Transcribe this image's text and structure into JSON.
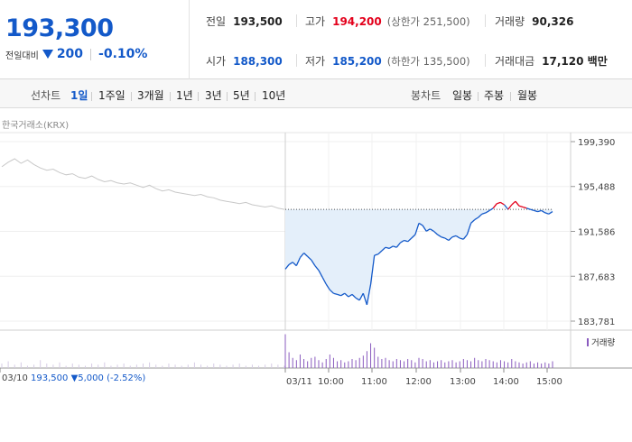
{
  "quote": {
    "price": "193,300",
    "change_label": "전일대비",
    "change": "200",
    "change_rate": "-0.10%"
  },
  "stats": {
    "prev_close_label": "전일",
    "prev_close": "193,500",
    "high_label": "고가",
    "high": "194,200",
    "upper_limit": "(상한가 251,500)",
    "volume_label": "거래량",
    "volume": "90,326",
    "open_label": "시가",
    "open": "188,300",
    "low_label": "저가",
    "low": "185,200",
    "lower_limit": "(하한가 135,500)",
    "amount_label": "거래대금",
    "amount": "17,120 백만"
  },
  "period_bar": {
    "line_label": "선차트",
    "line_items": [
      "1일",
      "1주일",
      "3개월",
      "1년",
      "3년",
      "5년",
      "10년"
    ],
    "active": "1일",
    "candle_label": "봉차트",
    "candle_items": [
      "일봉",
      "주봉",
      "월봉"
    ]
  },
  "source": "한국거래소(KRX)",
  "tooltip": {
    "date": "03/10",
    "price": "193,500",
    "change": "▼5,000",
    "rate": "(-2.52%)"
  },
  "volume_legend": "거래량",
  "colors": {
    "up": "#e3001b",
    "down": "#1359c9",
    "prev_day_line": "#c8c8c8",
    "fill": "#e4effa",
    "volume": "#8a5bbf"
  },
  "chart_data": {
    "type": "line",
    "y_ticks": [
      "199,390",
      "195,488",
      "191,586",
      "187,683",
      "183,781"
    ],
    "x_ticks": [
      "03/11",
      "10:00",
      "11:00",
      "12:00",
      "13:00",
      "14:00",
      "15:00"
    ],
    "ylim": [
      183781,
      199390
    ],
    "prev_close": 193500,
    "prev_day": {
      "name": "03/10",
      "values": [
        197200,
        197600,
        197900,
        197500,
        197800,
        197400,
        197100,
        196900,
        197000,
        196700,
        196500,
        196600,
        196300,
        196200,
        196400,
        196100,
        195900,
        196000,
        195800,
        195700,
        195800,
        195600,
        195400,
        195600,
        195300,
        195100,
        195200,
        195000,
        194900,
        194800,
        194700,
        194800,
        194600,
        194500,
        194300,
        194200,
        194100,
        194000,
        194100,
        193900,
        193800,
        193700,
        193800,
        193600,
        193500
      ]
    },
    "today": {
      "times": [
        "09:00",
        "09:05",
        "09:10",
        "09:15",
        "09:20",
        "09:25",
        "09:30",
        "09:35",
        "09:40",
        "09:45",
        "09:50",
        "09:55",
        "10:00",
        "10:05",
        "10:10",
        "10:15",
        "10:20",
        "10:25",
        "10:30",
        "10:35",
        "10:40",
        "10:45",
        "10:50",
        "10:55",
        "11:00",
        "11:05",
        "11:10",
        "11:15",
        "11:20",
        "11:25",
        "11:30",
        "11:35",
        "11:40",
        "11:45",
        "11:50",
        "11:55",
        "12:00",
        "12:05",
        "12:10",
        "12:15",
        "12:20",
        "12:25",
        "12:30",
        "12:35",
        "12:40",
        "12:45",
        "12:50",
        "12:55",
        "13:00",
        "13:05",
        "13:10",
        "13:15",
        "13:20",
        "13:25",
        "13:30",
        "13:35",
        "13:40",
        "13:45",
        "13:50",
        "13:55",
        "14:00",
        "14:05",
        "14:10",
        "14:15",
        "14:20",
        "14:25",
        "14:30",
        "14:35",
        "14:40",
        "14:45",
        "14:50",
        "14:55",
        "15:00"
      ],
      "values": [
        188300,
        188700,
        188900,
        188600,
        189300,
        189700,
        189400,
        189100,
        188600,
        188200,
        187600,
        187000,
        186500,
        186200,
        186100,
        186000,
        186200,
        185900,
        186100,
        185800,
        185600,
        186200,
        185200,
        187000,
        189500,
        189600,
        189900,
        190200,
        190100,
        190300,
        190200,
        190600,
        190800,
        190700,
        191000,
        191300,
        192300,
        192100,
        191600,
        191800,
        191600,
        191300,
        191100,
        191000,
        190800,
        191100,
        191200,
        191000,
        190900,
        191300,
        192300,
        192600,
        192800,
        193100,
        193200,
        193400,
        193600,
        194000,
        194100,
        193900,
        193500,
        193900,
        194200,
        193800,
        193700,
        193600,
        193500,
        193400,
        193300,
        193400,
        193200,
        193100,
        193300
      ]
    },
    "volume": {
      "prev_day": [
        4,
        6,
        3,
        5,
        2,
        3,
        7,
        4,
        3,
        5,
        2,
        4,
        3,
        2,
        4,
        3,
        5,
        2,
        3,
        4,
        2,
        3,
        4,
        5,
        3,
        2,
        4,
        3,
        2,
        3,
        5,
        3,
        2,
        4,
        3,
        2,
        3,
        4,
        2,
        3,
        2,
        3,
        4,
        3,
        2
      ],
      "today": [
        30,
        14,
        9,
        7,
        12,
        8,
        6,
        9,
        10,
        7,
        5,
        8,
        12,
        9,
        6,
        7,
        5,
        6,
        8,
        7,
        9,
        11,
        15,
        22,
        18,
        10,
        8,
        9,
        7,
        6,
        8,
        7,
        6,
        8,
        7,
        5,
        9,
        8,
        6,
        7,
        5,
        6,
        7,
        5,
        6,
        7,
        5,
        6,
        8,
        7,
        6,
        9,
        7,
        6,
        8,
        7,
        6,
        5,
        7,
        6,
        5,
        8,
        6,
        5,
        4,
        5,
        6,
        4,
        5,
        4,
        5,
        4,
        6
      ]
    }
  }
}
